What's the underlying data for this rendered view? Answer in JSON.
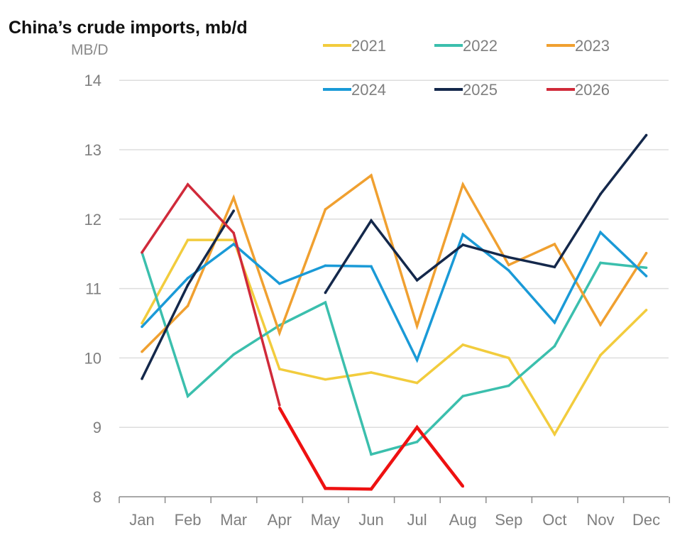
{
  "chart_data": {
    "type": "line",
    "title": "China’s crude imports, mb/d",
    "ylabel": "MB/D",
    "ylim": [
      8,
      14
    ],
    "yticks": [
      8,
      9,
      10,
      11,
      12,
      13,
      14
    ],
    "grid": true,
    "legend_position": "top-right",
    "categories": [
      "Jan",
      "Feb",
      "Mar",
      "Apr",
      "May",
      "Jun",
      "Jul",
      "Aug",
      "Sep",
      "Oct",
      "Nov",
      "Dec"
    ],
    "series": [
      {
        "name": "2021",
        "color": "#f2cc3d",
        "values": [
          10.5,
          11.7,
          11.7,
          9.84,
          9.69,
          9.79,
          9.64,
          10.19,
          10.0,
          8.9,
          10.04,
          10.69
        ]
      },
      {
        "name": "2022",
        "color": "#3bbfad",
        "values": [
          11.52,
          9.45,
          10.05,
          10.47,
          10.8,
          8.61,
          8.79,
          9.45,
          9.6,
          10.17,
          11.37,
          11.3
        ]
      },
      {
        "name": "2023",
        "color": "#f0a030",
        "values": [
          10.09,
          10.75,
          12.31,
          10.36,
          12.14,
          12.63,
          10.46,
          12.5,
          11.34,
          11.64,
          10.48,
          11.51
        ]
      },
      {
        "name": "2024",
        "color": "#1a9ad7",
        "values": [
          10.45,
          11.15,
          11.64,
          11.07,
          11.33,
          11.32,
          9.97,
          11.78,
          11.26,
          10.51,
          11.81,
          11.18
        ]
      },
      {
        "name": "2025",
        "color": "#14284b",
        "values": [
          9.7,
          11.05,
          12.12,
          null,
          10.94,
          11.98,
          11.12,
          11.63,
          11.45,
          11.31,
          12.36,
          13.21
        ]
      },
      {
        "name": "2026",
        "color": "#d02a3a",
        "values": [
          11.52,
          12.5,
          11.8,
          9.32,
          null,
          null,
          null,
          null,
          null,
          null,
          null,
          null
        ]
      },
      {
        "name": "",
        "color": "#ee1111",
        "values": [
          null,
          null,
          null,
          9.28,
          8.12,
          8.11,
          9.0,
          8.15,
          null,
          null,
          null,
          null
        ]
      }
    ]
  }
}
